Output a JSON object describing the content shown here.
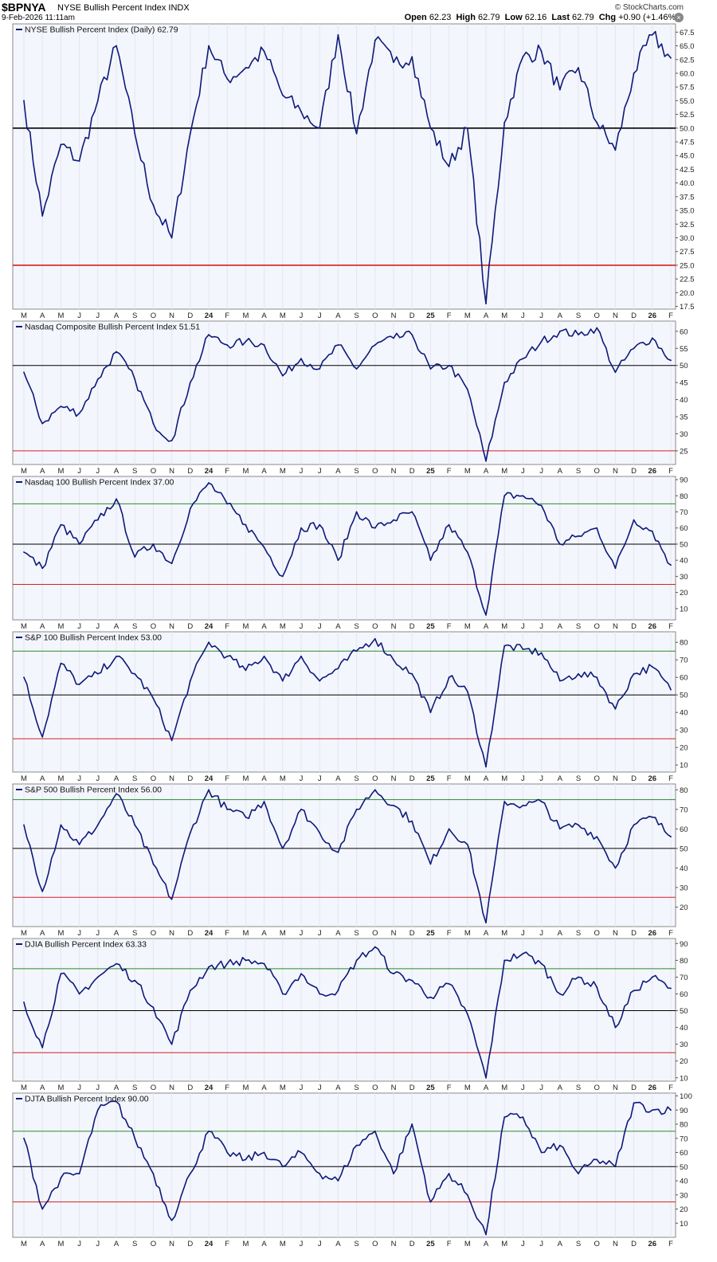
{
  "header": {
    "symbol": "$BPNYA",
    "name": "NYSE Bullish Percent Index",
    "exchange": "INDX",
    "datetime": "9-Feb-2026 11:11am",
    "brand": "© StockCharts.com",
    "open_label": "Open",
    "open": "62.23",
    "high_label": "High",
    "high": "62.79",
    "low_label": "Low",
    "low": "62.16",
    "last_label": "Last",
    "last": "62.79",
    "chg_label": "Chg",
    "chg": "+0.90 (+1.46%)"
  },
  "colors": {
    "line": "#0d1a7a",
    "mid": "#000000",
    "low": "#d42020",
    "high": "#2b8a2b",
    "panel_bg": "#f4f6fd"
  },
  "x_axis": {
    "labels": [
      "M",
      "A",
      "M",
      "J",
      "J",
      "A",
      "S",
      "O",
      "N",
      "D",
      "24",
      "F",
      "M",
      "A",
      "M",
      "J",
      "J",
      "A",
      "S",
      "O",
      "N",
      "D",
      "25",
      "F",
      "M",
      "A",
      "M",
      "J",
      "J",
      "A",
      "S",
      "O",
      "N",
      "D",
      "26",
      "F"
    ]
  },
  "chart_data": [
    {
      "type": "line",
      "title": "NYSE Bullish Percent Index (Daily) 62.79",
      "ylim": [
        17,
        69
      ],
      "yticks": [
        "17.5",
        "20.0",
        "22.5",
        "25.0",
        "27.5",
        "30.0",
        "32.5",
        "35.0",
        "37.5",
        "40.0",
        "42.5",
        "45.0",
        "47.5",
        "50.0",
        "52.5",
        "55.0",
        "57.5",
        "60.0",
        "62.5",
        "65.0",
        "67.5"
      ],
      "reference_lines": [
        50,
        25
      ],
      "x": [
        "2023-03",
        "2023-04",
        "2023-05",
        "2023-06",
        "2023-07",
        "2023-08",
        "2023-09",
        "2023-10",
        "2023-11",
        "2023-12",
        "2024-01",
        "2024-02",
        "2024-03",
        "2024-04",
        "2024-05",
        "2024-06",
        "2024-07",
        "2024-08",
        "2024-09",
        "2024-10",
        "2024-11",
        "2024-12",
        "2025-01",
        "2025-02",
        "2025-03",
        "2025-04",
        "2025-05",
        "2025-06",
        "2025-07",
        "2025-08",
        "2025-09",
        "2025-10",
        "2025-11",
        "2025-12",
        "2026-01",
        "2026-02"
      ],
      "values": [
        55,
        34,
        47,
        44,
        55,
        65,
        49,
        36,
        30,
        49,
        65,
        59,
        61,
        64,
        56,
        53,
        50,
        67,
        49,
        66,
        62,
        63,
        50,
        43,
        50,
        18,
        51,
        63,
        64,
        57,
        61,
        51,
        46,
        60,
        67,
        62.79
      ]
    },
    {
      "type": "line",
      "title": "Nasdaq Composite Bullish Percent Index 51.51",
      "ylim": [
        21,
        63
      ],
      "yticks": [
        "25",
        "30",
        "35",
        "40",
        "45",
        "50",
        "55",
        "60"
      ],
      "reference_lines": [
        50,
        25
      ],
      "x": [
        "2023-03",
        "2023-04",
        "2023-05",
        "2023-06",
        "2023-07",
        "2023-08",
        "2023-09",
        "2023-10",
        "2023-11",
        "2023-12",
        "2024-01",
        "2024-02",
        "2024-03",
        "2024-04",
        "2024-05",
        "2024-06",
        "2024-07",
        "2024-08",
        "2024-09",
        "2024-10",
        "2024-11",
        "2024-12",
        "2025-01",
        "2025-02",
        "2025-03",
        "2025-04",
        "2025-05",
        "2025-06",
        "2025-07",
        "2025-08",
        "2025-09",
        "2025-10",
        "2025-11",
        "2025-12",
        "2026-01",
        "2026-02"
      ],
      "values": [
        48,
        33,
        38,
        36,
        46,
        54,
        46,
        33,
        28,
        45,
        59,
        56,
        57,
        56,
        47,
        52,
        49,
        56,
        49,
        56,
        58,
        59,
        49,
        50,
        43,
        22,
        45,
        52,
        57,
        60,
        59,
        61,
        48,
        55,
        58,
        51.51
      ]
    },
    {
      "type": "line",
      "title": "Nasdaq 100 Bullish Percent Index 37.00",
      "ylim": [
        3,
        92
      ],
      "yticks": [
        "10",
        "20",
        "30",
        "40",
        "50",
        "60",
        "70",
        "80",
        "90"
      ],
      "reference_lines": [
        75,
        50,
        25
      ],
      "x": [
        "2023-03",
        "2023-04",
        "2023-05",
        "2023-06",
        "2023-07",
        "2023-08",
        "2023-09",
        "2023-10",
        "2023-11",
        "2023-12",
        "2024-01",
        "2024-02",
        "2024-03",
        "2024-04",
        "2024-05",
        "2024-06",
        "2024-07",
        "2024-08",
        "2024-09",
        "2024-10",
        "2024-11",
        "2024-12",
        "2025-01",
        "2025-02",
        "2025-03",
        "2025-04",
        "2025-05",
        "2025-06",
        "2025-07",
        "2025-08",
        "2025-09",
        "2025-10",
        "2025-11",
        "2025-12",
        "2026-01",
        "2026-02"
      ],
      "values": [
        45,
        35,
        62,
        50,
        65,
        78,
        42,
        50,
        38,
        72,
        88,
        75,
        62,
        48,
        30,
        60,
        62,
        40,
        70,
        60,
        65,
        70,
        40,
        62,
        45,
        6,
        80,
        80,
        74,
        50,
        55,
        60,
        35,
        65,
        58,
        37
      ]
    },
    {
      "type": "line",
      "title": "S&P 100 Bullish Percent Index 53.00",
      "ylim": [
        6,
        86
      ],
      "yticks": [
        "10",
        "20",
        "30",
        "40",
        "50",
        "60",
        "70",
        "80"
      ],
      "reference_lines": [
        75,
        50,
        25
      ],
      "x": [
        "2023-03",
        "2023-04",
        "2023-05",
        "2023-06",
        "2023-07",
        "2023-08",
        "2023-09",
        "2023-10",
        "2023-11",
        "2023-12",
        "2024-01",
        "2024-02",
        "2024-03",
        "2024-04",
        "2024-05",
        "2024-06",
        "2024-07",
        "2024-08",
        "2024-09",
        "2024-10",
        "2024-11",
        "2024-12",
        "2025-01",
        "2025-02",
        "2025-03",
        "2025-04",
        "2025-05",
        "2025-06",
        "2025-07",
        "2025-08",
        "2025-09",
        "2025-10",
        "2025-11",
        "2025-12",
        "2026-01",
        "2026-02"
      ],
      "values": [
        60,
        26,
        68,
        56,
        62,
        72,
        62,
        48,
        24,
        58,
        80,
        72,
        64,
        72,
        58,
        72,
        58,
        65,
        75,
        82,
        70,
        62,
        40,
        60,
        52,
        9,
        78,
        76,
        74,
        58,
        62,
        60,
        42,
        62,
        66,
        53
      ]
    },
    {
      "type": "line",
      "title": "S&P 500 Bullish Percent Index 56.00",
      "ylim": [
        10,
        83
      ],
      "yticks": [
        "20",
        "30",
        "40",
        "50",
        "60",
        "70",
        "80"
      ],
      "reference_lines": [
        75,
        50,
        25
      ],
      "x": [
        "2023-03",
        "2023-04",
        "2023-05",
        "2023-06",
        "2023-07",
        "2023-08",
        "2023-09",
        "2023-10",
        "2023-11",
        "2023-12",
        "2024-01",
        "2024-02",
        "2024-03",
        "2024-04",
        "2024-05",
        "2024-06",
        "2024-07",
        "2024-08",
        "2024-09",
        "2024-10",
        "2024-11",
        "2024-12",
        "2025-01",
        "2025-02",
        "2025-03",
        "2025-04",
        "2025-05",
        "2025-06",
        "2025-07",
        "2025-08",
        "2025-09",
        "2025-10",
        "2025-11",
        "2025-12",
        "2026-01",
        "2026-02"
      ],
      "values": [
        62,
        28,
        62,
        52,
        62,
        78,
        62,
        42,
        24,
        58,
        80,
        70,
        66,
        74,
        50,
        70,
        58,
        48,
        70,
        80,
        72,
        64,
        42,
        60,
        52,
        12,
        74,
        72,
        74,
        60,
        62,
        56,
        40,
        62,
        66,
        56
      ]
    },
    {
      "type": "line",
      "title": "DJIA Bullish Percent Index 63.33",
      "ylim": [
        8,
        93
      ],
      "yticks": [
        "10",
        "20",
        "30",
        "40",
        "50",
        "60",
        "70",
        "80",
        "90"
      ],
      "reference_lines": [
        75,
        50,
        25
      ],
      "x": [
        "2023-03",
        "2023-04",
        "2023-05",
        "2023-06",
        "2023-07",
        "2023-08",
        "2023-09",
        "2023-10",
        "2023-11",
        "2023-12",
        "2024-01",
        "2024-02",
        "2024-03",
        "2024-04",
        "2024-05",
        "2024-06",
        "2024-07",
        "2024-08",
        "2024-09",
        "2024-10",
        "2024-11",
        "2024-12",
        "2025-01",
        "2025-02",
        "2025-03",
        "2025-04",
        "2025-05",
        "2025-06",
        "2025-07",
        "2025-08",
        "2025-09",
        "2025-10",
        "2025-11",
        "2025-12",
        "2026-01",
        "2026-02"
      ],
      "values": [
        55,
        28,
        72,
        60,
        70,
        78,
        68,
        52,
        30,
        62,
        76,
        78,
        80,
        78,
        60,
        72,
        60,
        62,
        80,
        88,
        72,
        68,
        58,
        66,
        48,
        10,
        80,
        84,
        78,
        60,
        70,
        64,
        40,
        62,
        70,
        63.33
      ]
    },
    {
      "type": "line",
      "title": "DJTA Bullish Percent Index 90.00",
      "ylim": [
        0,
        102
      ],
      "yticks": [
        "10",
        "20",
        "30",
        "40",
        "50",
        "60",
        "70",
        "80",
        "90",
        "100"
      ],
      "reference_lines": [
        75,
        50,
        25
      ],
      "x": [
        "2023-03",
        "2023-04",
        "2023-05",
        "2023-06",
        "2023-07",
        "2023-08",
        "2023-09",
        "2023-10",
        "2023-11",
        "2023-12",
        "2024-01",
        "2024-02",
        "2024-03",
        "2024-04",
        "2024-05",
        "2024-06",
        "2024-07",
        "2024-08",
        "2024-09",
        "2024-10",
        "2024-11",
        "2024-12",
        "2025-01",
        "2025-02",
        "2025-03",
        "2025-04",
        "2025-05",
        "2025-06",
        "2025-07",
        "2025-08",
        "2025-09",
        "2025-10",
        "2025-11",
        "2025-12",
        "2026-01",
        "2026-02"
      ],
      "values": [
        70,
        20,
        42,
        45,
        90,
        96,
        70,
        45,
        12,
        45,
        75,
        60,
        55,
        60,
        50,
        60,
        45,
        40,
        65,
        75,
        45,
        80,
        25,
        45,
        30,
        2,
        85,
        85,
        60,
        65,
        45,
        55,
        50,
        95,
        90,
        90
      ]
    }
  ]
}
